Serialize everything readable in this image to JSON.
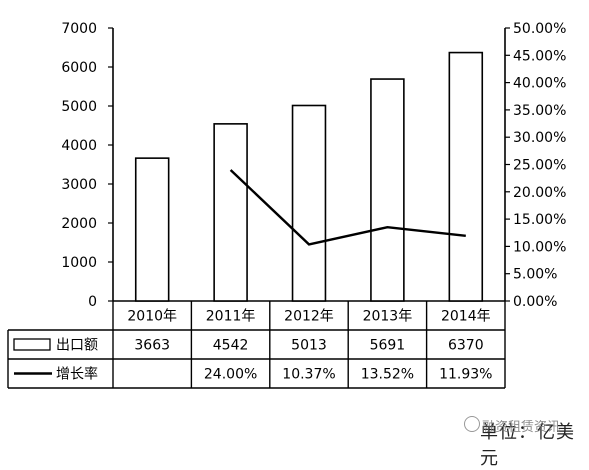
{
  "chart_data": {
    "type": "bar",
    "categories": [
      "2010年",
      "2011年",
      "2012年",
      "2013年",
      "2014年"
    ],
    "left_axis": {
      "ticks": [
        "0",
        "1000",
        "2000",
        "3000",
        "4000",
        "5000",
        "6000",
        "7000"
      ],
      "ylim": [
        0,
        7000
      ]
    },
    "right_axis": {
      "ticks": [
        "0.00%",
        "5.00%",
        "10.00%",
        "15.00%",
        "20.00%",
        "25.00%",
        "30.00%",
        "35.00%",
        "40.00%",
        "45.00%",
        "50.00%"
      ],
      "ylim": [
        0,
        50
      ]
    },
    "series": [
      {
        "name": "出口额",
        "type": "bar",
        "axis": "left",
        "values": [
          3663,
          4542,
          5013,
          5691,
          6370
        ],
        "labels": [
          "3663",
          "4542",
          "5013",
          "5691",
          "6370"
        ]
      },
      {
        "name": "增长率",
        "type": "line",
        "axis": "right",
        "values": [
          null,
          24.0,
          10.37,
          13.52,
          11.93
        ],
        "labels": [
          "",
          "24.00%",
          "10.37%",
          "13.52%",
          "11.93%"
        ]
      }
    ],
    "grid": false,
    "legend": "data-table"
  },
  "watermark": {
    "unit_text": "单位：亿美元",
    "brand_text": "融资租赁资讯"
  },
  "colors": {
    "bar_fill": "#ffffff",
    "stroke": "#000000",
    "line": "#000000"
  }
}
